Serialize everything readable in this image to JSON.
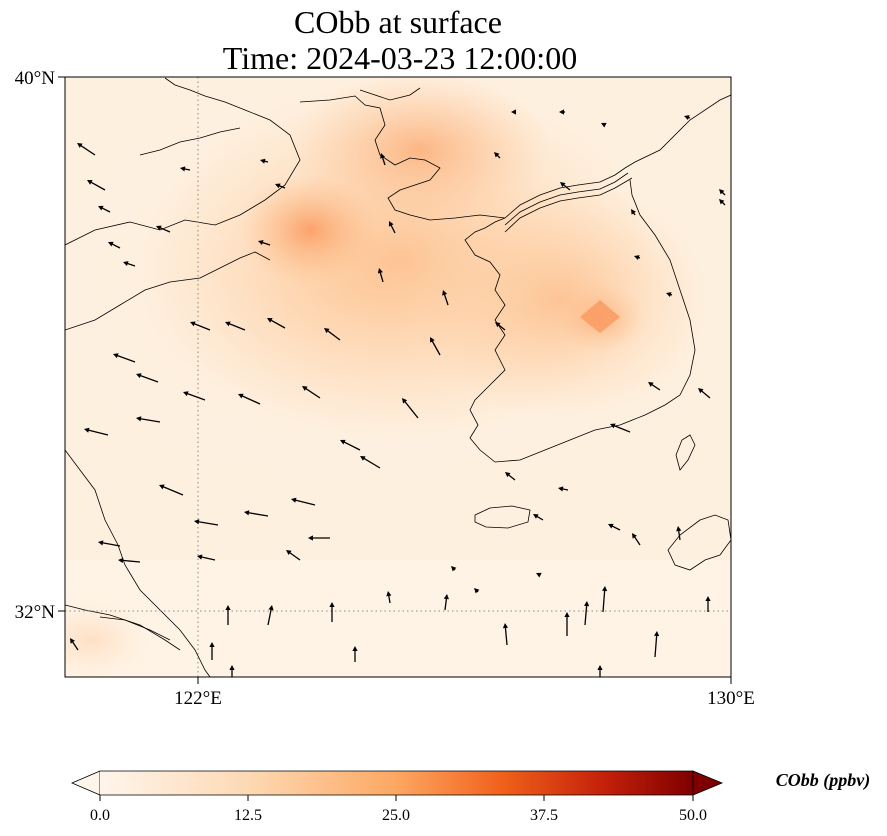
{
  "title_line1": "CObb at surface",
  "title_line2": "Time: 2024-03-23 12:00:00",
  "axes": {
    "lat_ticks": [
      {
        "label": "40°N",
        "value": 40
      },
      {
        "label": "32°N",
        "value": 32
      }
    ],
    "lon_ticks": [
      {
        "label": "122°E",
        "value": 122
      },
      {
        "label": "130°E",
        "value": 130
      }
    ],
    "extent": {
      "lon": [
        120,
        130
      ],
      "lat": [
        31,
        40
      ]
    },
    "gridlines": "dotted"
  },
  "colorbar": {
    "title": "CObb (ppbv)",
    "tick_labels": [
      "0.0",
      "12.5",
      "25.0",
      "37.5",
      "50.0"
    ],
    "range": [
      0,
      50
    ],
    "extend": "both",
    "colormap": "Oranges-to-darkred",
    "colors": [
      "#fff5eb",
      "#fdd9b4",
      "#fda762",
      "#f3701b",
      "#c4390a",
      "#7f0000"
    ]
  },
  "chart_data": {
    "type": "heatmap",
    "variable": "CObb",
    "units": "ppbv",
    "time": "2024-03-23 12:00:00",
    "lon_range": [
      120,
      130
    ],
    "lat_range": [
      31,
      40
    ],
    "value_range": [
      0,
      50
    ],
    "field_peaks": [
      {
        "lon": 123.8,
        "lat": 37.3,
        "value": 22
      },
      {
        "lon": 125.0,
        "lat": 38.8,
        "value": 20
      },
      {
        "lon": 128.0,
        "lat": 35.8,
        "value": 24
      }
    ],
    "wind_vectors_shown": true
  }
}
